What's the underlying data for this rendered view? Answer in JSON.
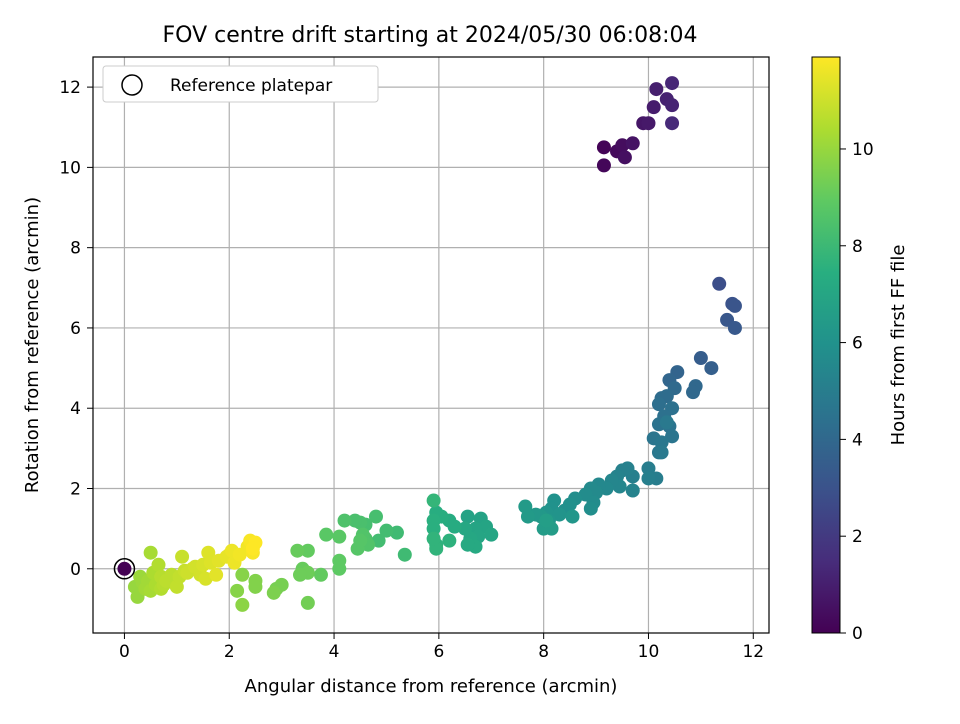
{
  "chart_data": {
    "type": "scatter",
    "title": "FOV centre drift starting at 2024/05/30 06:08:04",
    "xlabel": "Angular distance from reference (arcmin)",
    "ylabel": "Rotation from reference (arcmin)",
    "xlim": [
      -0.6,
      12.3
    ],
    "ylim": [
      -1.6,
      12.75
    ],
    "xticks": [
      0,
      2,
      4,
      6,
      8,
      10,
      12
    ],
    "yticks": [
      0,
      2,
      4,
      6,
      8,
      10,
      12
    ],
    "grid": true,
    "legend": {
      "position": "top-left",
      "label": "Reference platepar"
    },
    "reference_point": {
      "x": 0,
      "y": 0
    },
    "colorbar": {
      "label": "Hours from first FF file",
      "colormap": "viridis",
      "range": [
        0,
        11.9
      ],
      "ticks": [
        0,
        2,
        4,
        6,
        8,
        10
      ]
    },
    "series": [
      {
        "points": [
          [
            9.15,
            10.5,
            0.1
          ],
          [
            9.15,
            10.05,
            0.2
          ],
          [
            9.4,
            10.4,
            0.3
          ],
          [
            9.5,
            10.55,
            0.4
          ],
          [
            9.55,
            10.25,
            0.5
          ],
          [
            9.7,
            10.6,
            0.6
          ],
          [
            9.9,
            11.1,
            0.7
          ],
          [
            10.0,
            11.1,
            0.8
          ],
          [
            10.1,
            11.5,
            0.9
          ],
          [
            10.15,
            11.95,
            1.0
          ],
          [
            10.35,
            11.7,
            1.1
          ],
          [
            10.45,
            11.55,
            1.2
          ],
          [
            10.45,
            12.1,
            1.3
          ],
          [
            10.45,
            11.1,
            1.4
          ],
          [
            11.35,
            7.1,
            2.8
          ],
          [
            11.6,
            6.6,
            3.0
          ],
          [
            11.65,
            6.55,
            3.1
          ],
          [
            11.5,
            6.2,
            3.2
          ],
          [
            11.65,
            6.0,
            3.3
          ],
          [
            11.0,
            5.25,
            3.5
          ],
          [
            11.2,
            5.0,
            3.6
          ],
          [
            10.55,
            4.9,
            3.8
          ],
          [
            10.4,
            4.7,
            3.9
          ],
          [
            10.9,
            4.55,
            4.0
          ],
          [
            10.85,
            4.4,
            4.0
          ],
          [
            10.5,
            4.5,
            4.1
          ],
          [
            10.25,
            4.25,
            4.2
          ],
          [
            10.35,
            4.3,
            4.2
          ],
          [
            10.2,
            4.1,
            4.3
          ],
          [
            10.45,
            4.0,
            4.4
          ],
          [
            10.3,
            3.8,
            4.4
          ],
          [
            10.2,
            3.6,
            4.5
          ],
          [
            10.4,
            3.55,
            4.5
          ],
          [
            10.45,
            3.3,
            4.6
          ],
          [
            10.1,
            3.25,
            4.6
          ],
          [
            10.25,
            3.15,
            4.7
          ],
          [
            10.2,
            2.9,
            4.7
          ],
          [
            10.25,
            2.9,
            4.8
          ],
          [
            10.35,
            3.65,
            4.8
          ],
          [
            10.0,
            2.5,
            5.0
          ],
          [
            10.15,
            2.25,
            5.0
          ],
          [
            10.0,
            2.25,
            5.1
          ],
          [
            9.7,
            2.3,
            5.1
          ],
          [
            9.6,
            2.5,
            5.2
          ],
          [
            9.5,
            2.45,
            5.2
          ],
          [
            9.4,
            2.3,
            5.3
          ],
          [
            9.7,
            1.95,
            5.3
          ],
          [
            9.45,
            2.05,
            5.4
          ],
          [
            9.3,
            2.2,
            5.4
          ],
          [
            9.2,
            2.0,
            5.5
          ],
          [
            9.05,
            2.1,
            5.5
          ],
          [
            9.0,
            1.9,
            5.6
          ],
          [
            8.9,
            2.0,
            5.6
          ],
          [
            8.8,
            1.85,
            5.7
          ],
          [
            8.95,
            1.65,
            5.7
          ],
          [
            8.9,
            1.5,
            5.8
          ],
          [
            8.6,
            1.75,
            5.8
          ],
          [
            8.5,
            1.6,
            5.9
          ],
          [
            8.4,
            1.45,
            5.9
          ],
          [
            8.2,
            1.7,
            6.0
          ],
          [
            8.15,
            1.5,
            6.0
          ],
          [
            8.05,
            1.4,
            6.1
          ],
          [
            8.3,
            1.35,
            6.1
          ],
          [
            8.55,
            1.3,
            6.2
          ],
          [
            8.1,
            1.2,
            6.2
          ],
          [
            7.95,
            1.3,
            6.3
          ],
          [
            7.85,
            1.35,
            6.3
          ],
          [
            7.7,
            1.3,
            6.4
          ],
          [
            7.65,
            1.55,
            6.4
          ],
          [
            8.0,
            1.0,
            6.5
          ],
          [
            8.15,
            1.0,
            6.5
          ],
          [
            8.05,
            1.2,
            6.6
          ],
          [
            6.8,
            1.25,
            6.8
          ],
          [
            6.55,
            1.3,
            6.8
          ],
          [
            6.9,
            1.05,
            6.9
          ],
          [
            6.7,
            1.0,
            6.9
          ],
          [
            7.0,
            0.85,
            7.0
          ],
          [
            6.75,
            0.8,
            7.0
          ],
          [
            6.6,
            0.75,
            7.1
          ],
          [
            6.5,
            1.0,
            7.1
          ],
          [
            6.7,
            0.55,
            7.2
          ],
          [
            6.55,
            0.6,
            7.2
          ],
          [
            6.3,
            1.05,
            7.3
          ],
          [
            6.2,
            1.2,
            7.3
          ],
          [
            6.05,
            1.3,
            7.4
          ],
          [
            5.95,
            1.4,
            7.4
          ],
          [
            5.9,
            1.2,
            7.5
          ],
          [
            5.9,
            1.0,
            7.5
          ],
          [
            6.2,
            0.7,
            7.6
          ],
          [
            5.95,
            0.6,
            7.6
          ],
          [
            5.95,
            0.5,
            7.7
          ],
          [
            5.9,
            0.75,
            7.7
          ],
          [
            5.9,
            1.7,
            7.8
          ],
          [
            5.2,
            0.9,
            8.1
          ],
          [
            5.35,
            0.35,
            8.1
          ],
          [
            5.0,
            0.95,
            8.2
          ],
          [
            4.85,
            0.7,
            8.2
          ],
          [
            4.8,
            1.3,
            8.3
          ],
          [
            4.6,
            1.1,
            8.3
          ],
          [
            4.5,
            1.15,
            8.4
          ],
          [
            4.4,
            1.2,
            8.4
          ],
          [
            4.2,
            1.2,
            8.5
          ],
          [
            4.6,
            0.75,
            8.5
          ],
          [
            4.55,
            0.85,
            8.6
          ],
          [
            4.65,
            0.6,
            8.6
          ],
          [
            4.45,
            0.5,
            8.7
          ],
          [
            4.5,
            0.7,
            8.7
          ],
          [
            4.1,
            0.8,
            8.8
          ],
          [
            3.85,
            0.85,
            8.8
          ],
          [
            4.1,
            0.2,
            8.9
          ],
          [
            4.1,
            0.0,
            8.9
          ],
          [
            3.75,
            -0.15,
            9.0
          ],
          [
            3.5,
            0.45,
            9.0
          ],
          [
            3.3,
            0.45,
            9.1
          ],
          [
            3.4,
            0.0,
            9.1
          ],
          [
            3.5,
            -0.1,
            9.2
          ],
          [
            3.35,
            -0.15,
            9.2
          ],
          [
            3.5,
            -0.85,
            9.3
          ],
          [
            3.0,
            -0.4,
            9.4
          ],
          [
            2.9,
            -0.5,
            9.4
          ],
          [
            2.85,
            -0.6,
            9.5
          ],
          [
            2.5,
            -0.3,
            9.6
          ],
          [
            2.5,
            -0.45,
            9.6
          ],
          [
            2.25,
            -0.15,
            9.7
          ],
          [
            2.15,
            -0.55,
            9.7
          ],
          [
            2.25,
            -0.9,
            9.8
          ],
          [
            0.2,
            -0.45,
            10.0
          ],
          [
            0.25,
            -0.7,
            10.0
          ],
          [
            0.3,
            -0.2,
            10.1
          ],
          [
            0.35,
            -0.35,
            10.1
          ],
          [
            0.4,
            -0.5,
            10.2
          ],
          [
            0.45,
            -0.3,
            10.2
          ],
          [
            0.5,
            -0.55,
            10.3
          ],
          [
            0.5,
            0.4,
            10.3
          ],
          [
            0.55,
            -0.1,
            10.4
          ],
          [
            0.6,
            -0.4,
            10.4
          ],
          [
            0.65,
            0.1,
            10.5
          ],
          [
            0.7,
            -0.5,
            10.5
          ],
          [
            0.7,
            -0.2,
            10.6
          ],
          [
            0.75,
            -0.4,
            10.6
          ],
          [
            0.8,
            -0.3,
            10.7
          ],
          [
            0.9,
            -0.15,
            10.7
          ],
          [
            1.0,
            -0.45,
            10.8
          ],
          [
            1.05,
            -0.2,
            10.8
          ],
          [
            1.1,
            0.3,
            10.9
          ],
          [
            1.15,
            -0.05,
            10.9
          ],
          [
            1.2,
            -0.1,
            11.0
          ],
          [
            1.3,
            0.0,
            11.0
          ],
          [
            1.35,
            0.05,
            11.1
          ],
          [
            1.45,
            -0.15,
            11.1
          ],
          [
            1.5,
            0.1,
            11.2
          ],
          [
            1.55,
            -0.25,
            11.2
          ],
          [
            1.6,
            0.4,
            11.3
          ],
          [
            1.65,
            0.15,
            11.3
          ],
          [
            1.75,
            -0.15,
            11.4
          ],
          [
            1.8,
            0.2,
            11.4
          ],
          [
            1.95,
            0.3,
            11.5
          ],
          [
            2.0,
            0.35,
            11.5
          ],
          [
            2.05,
            0.45,
            11.6
          ],
          [
            2.1,
            0.15,
            11.6
          ],
          [
            2.2,
            0.35,
            11.7
          ],
          [
            2.35,
            0.55,
            11.7
          ],
          [
            2.4,
            0.7,
            11.8
          ],
          [
            2.45,
            0.4,
            11.8
          ],
          [
            2.5,
            0.65,
            11.9
          ],
          [
            2.45,
            0.5,
            11.9
          ]
        ]
      }
    ]
  }
}
